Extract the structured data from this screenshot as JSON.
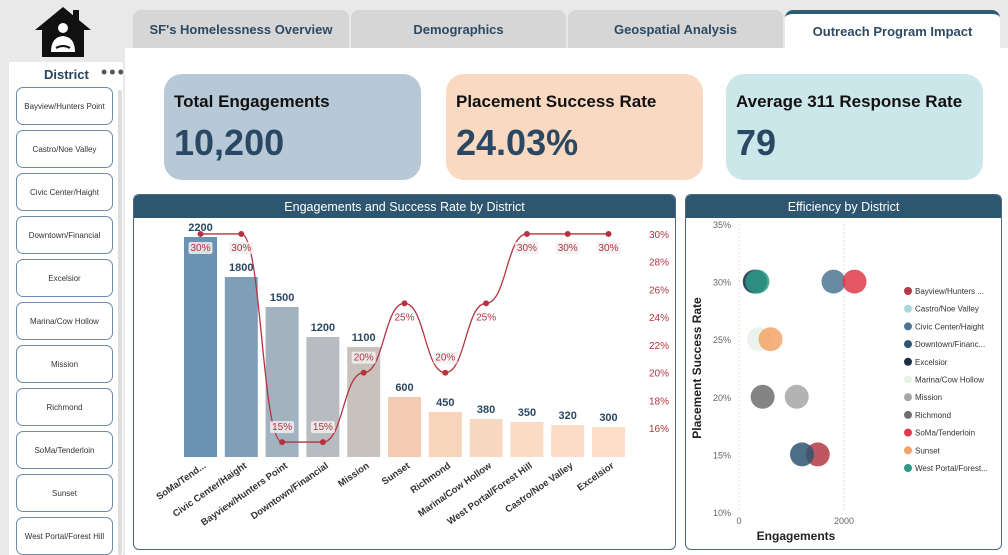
{
  "tabs": [
    {
      "label": "SF's Homelessness Overview"
    },
    {
      "label": "Demographics"
    },
    {
      "label": "Geospatial Analysis"
    },
    {
      "label": "Outreach Program Impact"
    }
  ],
  "slicer": {
    "title": "District",
    "more": "•••",
    "items": [
      "Bayview/Hunters Point",
      "Castro/Noe Valley",
      "Civic Center/Haight",
      "Downtown/Financial",
      "Excelsior",
      "Marina/Cow Hollow",
      "Mission",
      "Richmond",
      "SoMa/Tenderloin",
      "Sunset",
      "West Portal/Forest Hill"
    ]
  },
  "kpis": [
    {
      "title": "Total Engagements",
      "value": "10,200",
      "bg": "#b7c9d7"
    },
    {
      "title": "Placement Success Rate",
      "value": "24.03%",
      "bg": "#f9d9c1"
    },
    {
      "title": "Average 311 Response Rate",
      "value": "79",
      "bg": "#cbe7ea"
    }
  ],
  "chart_data": [
    {
      "type": "bar",
      "title": "Engagements and Success Rate by District",
      "categories": [
        "SoMa/Tend...",
        "Civic Center/Haight",
        "Bayview/Hunters Point",
        "Downtown/Financial",
        "Mission",
        "Sunset",
        "Richmond",
        "Marina/Cow Hollow",
        "West Portal/Forest Hill",
        "Castro/Noe Valley",
        "Excelsior"
      ],
      "series": [
        {
          "values": [
            2200,
            1800,
            1500,
            1200,
            1100,
            600,
            450,
            380,
            350,
            320,
            300
          ]
        },
        {
          "values": [
            30,
            30,
            15,
            15,
            20,
            25,
            20,
            25,
            30,
            30,
            30
          ]
        }
      ],
      "line_labels": [
        "30%",
        "30%",
        "15%",
        "15%",
        "20%",
        "25%",
        "20%",
        "25%",
        "30%",
        "30%",
        "30%"
      ],
      "bar_colors": [
        "#6b93b1",
        "#7f9fb8",
        "#a3b2bf",
        "#b8bbc0",
        "#c8c2bd",
        "#f2cbb0",
        "#f7d4ba",
        "#f9d8c0",
        "#fadbc4",
        "#fbdcc6",
        "#fcdec8"
      ],
      "line_color": "#b5333f",
      "y2_ticks": [
        "30%",
        "28%",
        "26%",
        "24%",
        "22%",
        "20%",
        "18%",
        "16%"
      ],
      "y2lim": [
        14.5,
        30.5
      ]
    },
    {
      "type": "scatter",
      "title": "Efficiency by District",
      "xlabel": "Engagements",
      "ylabel": "Placement Success Rate",
      "xticks": [
        "0",
        "2000"
      ],
      "yticks": [
        "35%",
        "30%",
        "25%",
        "20%",
        "15%",
        "10%"
      ],
      "xlim": [
        0,
        3000
      ],
      "ylim": [
        10,
        35
      ],
      "points": [
        {
          "name": "Bayview/Hunters Point",
          "x": 1500,
          "y": 15,
          "color": "#b43a45"
        },
        {
          "name": "Castro/Noe Valley",
          "x": 320,
          "y": 30,
          "color": "#a8d8dc"
        },
        {
          "name": "Civic Center/Haight",
          "x": 1800,
          "y": 30,
          "color": "#4f7593"
        },
        {
          "name": "Downtown/Financial",
          "x": 1200,
          "y": 15,
          "color": "#2e5671"
        },
        {
          "name": "Excelsior",
          "x": 300,
          "y": 30,
          "color": "#1d2f45"
        },
        {
          "name": "Marina/Cow Hollow",
          "x": 380,
          "y": 25,
          "color": "#e6f2e6"
        },
        {
          "name": "Mission",
          "x": 1100,
          "y": 20,
          "color": "#a6a6a6"
        },
        {
          "name": "Richmond",
          "x": 450,
          "y": 20,
          "color": "#6e6e6e"
        },
        {
          "name": "SoMa/Tenderloin",
          "x": 2200,
          "y": 30,
          "color": "#e23a4b"
        },
        {
          "name": "Sunset",
          "x": 600,
          "y": 25,
          "color": "#f3a467"
        },
        {
          "name": "West Portal/Forest Hill",
          "x": 350,
          "y": 30,
          "color": "#2a9a86"
        }
      ],
      "legend": [
        "Bayview/Hunters ...",
        "Castro/Noe Valley",
        "Civic Center/Haight",
        "Downtown/Financ...",
        "Excelsior",
        "Marina/Cow Hollow",
        "Mission",
        "Richmond",
        "SoMa/Tenderloin",
        "Sunset",
        "West Portal/Forest..."
      ]
    }
  ]
}
